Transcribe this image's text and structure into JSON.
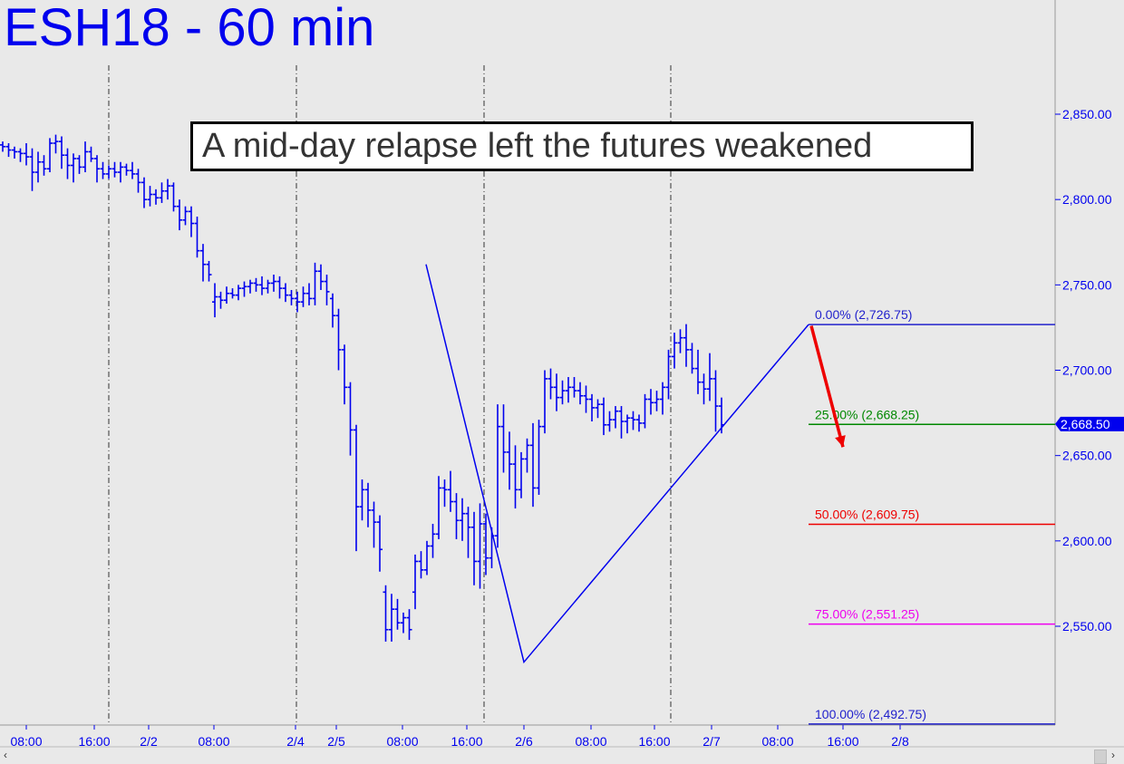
{
  "title": "ESH18 - 60 min",
  "annotation": "A mid-day relapse left the futures weakened",
  "scroll": {
    "left_arrow": "‹",
    "right_arrow": "›"
  },
  "colors": {
    "background": "#e9e9e9",
    "price_bars": "#0000ee",
    "fib_0": "#2222cc",
    "fib_25": "#008800",
    "fib_50": "#ee0000",
    "fib_75": "#ee00ee",
    "fib_100": "#2222cc",
    "arrow": "#ee0000"
  },
  "chart_data": {
    "type": "ohlc",
    "ylim": [
      2487,
      2905
    ],
    "y_ticks": [
      "2,550.00",
      "2,600.00",
      "2,650.00",
      "2,700.00",
      "2,750.00",
      "2,800.00",
      "2,850.00"
    ],
    "x_ticks": [
      "08:00",
      "16:00",
      "2/2",
      "08:00",
      "2/4",
      "2/5",
      "08:00",
      "16:00",
      "2/6",
      "08:00",
      "16:00",
      "2/7",
      "08:00",
      "16:00",
      "2/8"
    ],
    "last_price": "2,668.50",
    "session_separators": [
      "2/1 20:00",
      "2/4",
      "2/5 20:00",
      "2/6 20:00"
    ],
    "fibonacci_levels": [
      {
        "label": "0.00% (2,726.75)",
        "value": 2726.75,
        "color": "#2222cc"
      },
      {
        "label": "25.00% (2,668.25)",
        "value": 2668.25,
        "color": "#008800"
      },
      {
        "label": "50.00% (2,609.75)",
        "value": 2609.75,
        "color": "#ee0000"
      },
      {
        "label": "75.00% (2,551.25)",
        "value": 2551.25,
        "color": "#ee00ee"
      },
      {
        "label": "100.00% (2,492.75)",
        "value": 2492.75,
        "color": "#2222cc"
      }
    ],
    "pattern_lines": [
      {
        "from_bar": 0,
        "from_price": 2762,
        "to_bar": 0,
        "to_price": 2529
      },
      {
        "from_price": 2529,
        "to_price": 2726.75
      }
    ],
    "bars": [
      [
        2832,
        2834,
        2828,
        2831
      ],
      [
        2831,
        2833,
        2825,
        2829
      ],
      [
        2829,
        2831,
        2824,
        2828
      ],
      [
        2828,
        2830,
        2822,
        2827
      ],
      [
        2827,
        2833,
        2820,
        2825
      ],
      [
        2825,
        2830,
        2805,
        2816
      ],
      [
        2816,
        2828,
        2810,
        2822
      ],
      [
        2822,
        2826,
        2814,
        2818
      ],
      [
        2818,
        2836,
        2816,
        2833
      ],
      [
        2833,
        2838,
        2827,
        2834
      ],
      [
        2834,
        2837,
        2818,
        2826
      ],
      [
        2826,
        2830,
        2812,
        2820
      ],
      [
        2820,
        2827,
        2810,
        2824
      ],
      [
        2824,
        2826,
        2815,
        2819
      ],
      [
        2819,
        2834,
        2816,
        2828
      ],
      [
        2828,
        2831,
        2822,
        2824
      ],
      [
        2824,
        2826,
        2810,
        2818
      ],
      [
        2818,
        2822,
        2812,
        2815
      ],
      [
        2815,
        2820,
        2812,
        2818
      ],
      [
        2818,
        2822,
        2813,
        2816
      ],
      [
        2816,
        2822,
        2810,
        2819
      ],
      [
        2819,
        2821,
        2814,
        2817
      ],
      [
        2817,
        2822,
        2812,
        2815
      ],
      [
        2815,
        2818,
        2804,
        2810
      ],
      [
        2810,
        2813,
        2795,
        2800
      ],
      [
        2800,
        2808,
        2796,
        2803
      ],
      [
        2803,
        2806,
        2797,
        2801
      ],
      [
        2801,
        2810,
        2798,
        2805
      ],
      [
        2805,
        2812,
        2800,
        2808
      ],
      [
        2808,
        2810,
        2793,
        2796
      ],
      [
        2796,
        2800,
        2782,
        2788
      ],
      [
        2788,
        2796,
        2785,
        2793
      ],
      [
        2793,
        2796,
        2778,
        2786
      ],
      [
        2786,
        2790,
        2766,
        2770
      ],
      [
        2770,
        2774,
        2752,
        2762
      ],
      [
        2762,
        2764,
        2752,
        2756
      ],
      [
        2740,
        2751,
        2731,
        2743
      ],
      [
        2743,
        2746,
        2736,
        2741
      ],
      [
        2741,
        2749,
        2739,
        2745
      ],
      [
        2745,
        2748,
        2742,
        2744
      ],
      [
        2744,
        2750,
        2741,
        2748
      ],
      [
        2748,
        2752,
        2743,
        2749
      ],
      [
        2749,
        2753,
        2745,
        2751
      ],
      [
        2751,
        2754,
        2746,
        2750
      ],
      [
        2750,
        2755,
        2744,
        2748
      ],
      [
        2748,
        2753,
        2745,
        2751
      ],
      [
        2751,
        2756,
        2746,
        2752
      ],
      [
        2752,
        2755,
        2742,
        2748
      ],
      [
        2748,
        2751,
        2740,
        2744
      ],
      [
        2744,
        2747,
        2738,
        2742
      ],
      [
        2742,
        2746,
        2734,
        2740
      ],
      [
        2740,
        2749,
        2737,
        2745
      ],
      [
        2745,
        2751,
        2738,
        2742
      ],
      [
        2742,
        2763,
        2738,
        2758
      ],
      [
        2758,
        2762,
        2747,
        2752
      ],
      [
        2752,
        2756,
        2738,
        2746
      ],
      [
        2742,
        2745,
        2725,
        2732
      ],
      [
        2732,
        2736,
        2700,
        2712
      ],
      [
        2712,
        2715,
        2680,
        2690
      ],
      [
        2690,
        2693,
        2650,
        2665
      ],
      [
        2665,
        2668,
        2594,
        2620
      ],
      [
        2620,
        2636,
        2612,
        2630
      ],
      [
        2630,
        2634,
        2608,
        2618
      ],
      [
        2618,
        2623,
        2596,
        2611
      ],
      [
        2611,
        2615,
        2582,
        2595
      ],
      [
        2570,
        2574,
        2541,
        2548
      ],
      [
        2548,
        2569,
        2541,
        2560
      ],
      [
        2560,
        2566,
        2548,
        2552
      ],
      [
        2552,
        2558,
        2546,
        2555
      ],
      [
        2555,
        2560,
        2542,
        2548
      ],
      [
        2570,
        2592,
        2560,
        2588
      ],
      [
        2588,
        2594,
        2578,
        2583
      ],
      [
        2583,
        2600,
        2580,
        2597
      ],
      [
        2597,
        2610,
        2590,
        2604
      ],
      [
        2604,
        2638,
        2601,
        2631
      ],
      [
        2631,
        2636,
        2620,
        2630
      ],
      [
        2630,
        2641,
        2617,
        2623
      ],
      [
        2623,
        2628,
        2601,
        2612
      ],
      [
        2612,
        2625,
        2600,
        2616
      ],
      [
        2616,
        2620,
        2590,
        2608
      ],
      [
        2608,
        2617,
        2574,
        2588
      ],
      [
        2588,
        2622,
        2572,
        2610
      ],
      [
        2610,
        2616,
        2580,
        2590
      ],
      [
        2590,
        2608,
        2584,
        2603
      ],
      [
        2603,
        2680,
        2596,
        2667
      ],
      [
        2667,
        2680,
        2640,
        2652
      ],
      [
        2652,
        2664,
        2630,
        2645
      ],
      [
        2645,
        2656,
        2619,
        2630
      ],
      [
        2630,
        2652,
        2625,
        2648
      ],
      [
        2648,
        2660,
        2640,
        2656
      ],
      [
        2656,
        2669,
        2620,
        2631
      ],
      [
        2631,
        2671,
        2627,
        2667
      ],
      [
        2667,
        2700,
        2663,
        2695
      ],
      [
        2695,
        2701,
        2683,
        2690
      ],
      [
        2690,
        2698,
        2676,
        2684
      ],
      [
        2684,
        2694,
        2680,
        2688
      ],
      [
        2688,
        2696,
        2681,
        2690
      ],
      [
        2690,
        2696,
        2684,
        2688
      ],
      [
        2688,
        2693,
        2680,
        2685
      ],
      [
        2685,
        2691,
        2675,
        2683
      ],
      [
        2683,
        2686,
        2670,
        2678
      ],
      [
        2678,
        2683,
        2672,
        2680
      ],
      [
        2680,
        2684,
        2662,
        2668
      ],
      [
        2668,
        2676,
        2664,
        2671
      ],
      [
        2671,
        2679,
        2666,
        2676
      ],
      [
        2676,
        2679,
        2660,
        2670
      ],
      [
        2670,
        2674,
        2663,
        2672
      ],
      [
        2672,
        2676,
        2665,
        2671
      ],
      [
        2671,
        2674,
        2664,
        2669
      ],
      [
        2669,
        2686,
        2666,
        2683
      ],
      [
        2683,
        2689,
        2674,
        2681
      ],
      [
        2681,
        2688,
        2676,
        2683
      ],
      [
        2683,
        2693,
        2674,
        2690
      ],
      [
        2690,
        2712,
        2683,
        2708
      ],
      [
        2708,
        2722,
        2701,
        2716
      ],
      [
        2716,
        2724,
        2710,
        2719
      ],
      [
        2719,
        2727,
        2702,
        2712
      ],
      [
        2712,
        2716,
        2698,
        2701
      ],
      [
        2701,
        2712,
        2686,
        2693
      ],
      [
        2693,
        2698,
        2680,
        2689
      ],
      [
        2689,
        2710,
        2682,
        2695
      ],
      [
        2695,
        2700,
        2664,
        2679
      ],
      [
        2679,
        2684,
        2663,
        2668
      ]
    ]
  }
}
